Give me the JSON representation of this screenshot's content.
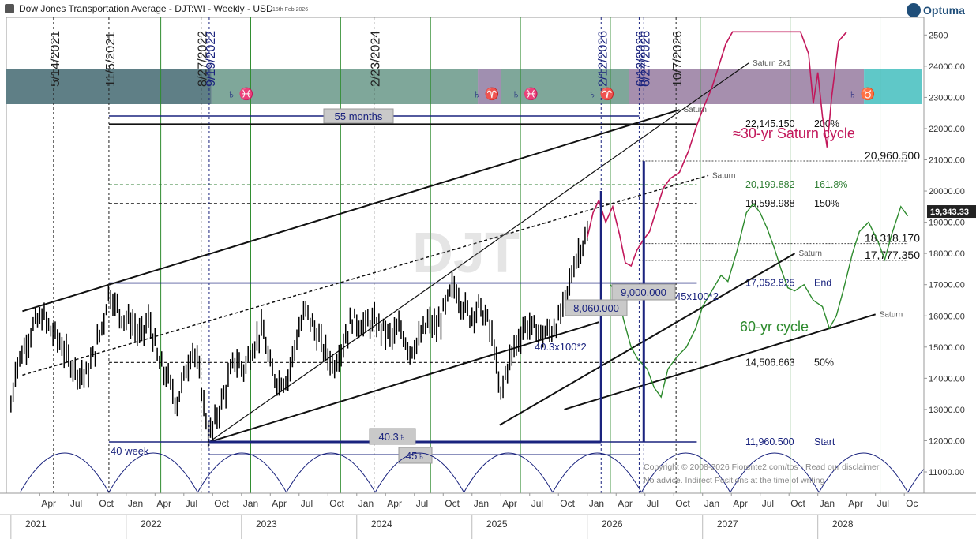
{
  "header": {
    "title": "Dow Jones Transportation Average - DJT:WI - Weekly - USD",
    "date": "15th Feb 2026",
    "brand": "Optuma"
  },
  "chart_data": {
    "type": "candlestick",
    "ylim": [
      10500,
      25100
    ],
    "y_ticks": [
      "11000.00",
      "12000.00",
      "13000.00",
      "14000.00",
      "15000.00",
      "16000.00",
      "17000.00",
      "18000.00",
      "19000.00",
      "20000.00",
      "21000.00",
      "22000.00",
      "23000.00",
      "24000.00",
      "2500"
    ],
    "last_price": "19,343.33",
    "watermark": "DJT",
    "month_labels": [
      {
        "t": 2021.25,
        "label": "Apr"
      },
      {
        "t": 2021.5,
        "label": "Jul"
      },
      {
        "t": 2021.75,
        "label": "Oct"
      },
      {
        "t": 2022.0,
        "label": "Jan"
      },
      {
        "t": 2022.25,
        "label": "Apr"
      },
      {
        "t": 2022.5,
        "label": "Jul"
      },
      {
        "t": 2022.75,
        "label": "Oct"
      },
      {
        "t": 2023.0,
        "label": "Jan"
      },
      {
        "t": 2023.25,
        "label": "Apr"
      },
      {
        "t": 2023.5,
        "label": "Jul"
      },
      {
        "t": 2023.75,
        "label": "Oct"
      },
      {
        "t": 2024.0,
        "label": "Jan"
      },
      {
        "t": 2024.25,
        "label": "Apr"
      },
      {
        "t": 2024.5,
        "label": "Jul"
      },
      {
        "t": 2024.75,
        "label": "Oct"
      },
      {
        "t": 2025.0,
        "label": "Jan"
      },
      {
        "t": 2025.25,
        "label": "Apr"
      },
      {
        "t": 2025.5,
        "label": "Jul"
      },
      {
        "t": 2025.75,
        "label": "Oct"
      },
      {
        "t": 2026.0,
        "label": "Jan"
      },
      {
        "t": 2026.25,
        "label": "Apr"
      },
      {
        "t": 2026.5,
        "label": "Jul"
      },
      {
        "t": 2026.75,
        "label": "Oct"
      },
      {
        "t": 2027.0,
        "label": "Jan"
      },
      {
        "t": 2027.25,
        "label": "Apr"
      },
      {
        "t": 2027.5,
        "label": "Jul"
      },
      {
        "t": 2027.75,
        "label": "Oct"
      },
      {
        "t": 2028.0,
        "label": "Jan"
      },
      {
        "t": 2028.25,
        "label": "Apr"
      },
      {
        "t": 2028.5,
        "label": "Jul"
      },
      {
        "t": 2028.75,
        "label": "Oc"
      }
    ],
    "year_labels": [
      {
        "t": 2021.25,
        "label": "2021"
      },
      {
        "t": 2022.25,
        "label": "2022"
      },
      {
        "t": 2023.25,
        "label": "2023"
      },
      {
        "t": 2024.25,
        "label": "2024"
      },
      {
        "t": 2025.25,
        "label": "2025"
      },
      {
        "t": 2026.25,
        "label": "2026"
      },
      {
        "t": 2027.25,
        "label": "2027"
      },
      {
        "t": 2028.25,
        "label": "2028"
      }
    ],
    "date_lines": [
      {
        "t": 2021.37,
        "label": "5/14/2021",
        "color": "#222"
      },
      {
        "t": 2021.85,
        "label": "11/5/2021",
        "color": "#222"
      },
      {
        "t": 2022.65,
        "label": "8/27/2022",
        "color": "#222"
      },
      {
        "t": 2022.72,
        "label": "9/19/2022",
        "color": "#1a237e"
      },
      {
        "t": 2024.15,
        "label": "2/23/2024",
        "color": "#222"
      },
      {
        "t": 2026.12,
        "label": "2/12/2026",
        "color": "#1a237e"
      },
      {
        "t": 2026.45,
        "label": "6/12/2026",
        "color": "#1a237e"
      },
      {
        "t": 2026.49,
        "label": "6/27/2026",
        "color": "#1a237e"
      },
      {
        "t": 2026.77,
        "label": "10/7/2026",
        "color": "#222"
      }
    ],
    "zodiac_marks": [
      {
        "t": 2022.99,
        "label": "♄ ♓"
      },
      {
        "t": 2025.12,
        "label": "♄ ♈"
      },
      {
        "t": 2025.46,
        "label": "♄ ♓"
      },
      {
        "t": 2026.12,
        "label": "♄ ♈"
      },
      {
        "t": 2028.38,
        "label": "♄ ♉"
      }
    ],
    "levels": [
      {
        "value": 22145.15,
        "label": "22,145.150",
        "pct": "200%",
        "style": "solid",
        "color": "#111"
      },
      {
        "value": 20199.882,
        "label": "20,199.882",
        "pct": "161.8%",
        "style": "dash",
        "color": "#2e7d32"
      },
      {
        "value": 19598.988,
        "label": "19,598.988",
        "pct": "150%",
        "style": "dash",
        "color": "#111"
      },
      {
        "value": 17052.825,
        "label": "17,052.825",
        "pct": "End",
        "style": "solid",
        "color": "#1a237e"
      },
      {
        "value": 14506.663,
        "label": "14,506.663",
        "pct": "50%",
        "style": "dash",
        "color": "#111"
      },
      {
        "value": 11960.5,
        "label": "11,960.500",
        "pct": "Start",
        "style": "solid",
        "color": "#1a237e"
      }
    ],
    "price_labels": [
      "20,960.500",
      "18,318.170",
      "17,777.350"
    ],
    "annotations": {
      "saturn_cycle": "≈30-yr Saturn cycle",
      "cycle_60": "60-yr cycle",
      "months": "55 months",
      "weeks": "40 week",
      "box_8060": "8,060.000",
      "box_9000": "9,000.000",
      "fan_4030": "40.3x100*2",
      "fan_45": "45x100*2",
      "tag_403": "40.3♄",
      "tag_45": "45♄",
      "saturn": "Saturn",
      "saturn_2x1": "Saturn 2x1",
      "copyright": "Copyright © 2008-2026 Fiorente2.com/tos - Read our disclaimer",
      "advice": "No advice. Indirect Positions at the time of writing"
    },
    "price_anchors": [
      [
        2021.0,
        13100
      ],
      [
        2021.04,
        14300
      ],
      [
        2021.12,
        15000
      ],
      [
        2021.2,
        15700
      ],
      [
        2021.28,
        16000
      ],
      [
        2021.35,
        15500
      ],
      [
        2021.42,
        15200
      ],
      [
        2021.5,
        14600
      ],
      [
        2021.58,
        14200
      ],
      [
        2021.66,
        14100
      ],
      [
        2021.74,
        15000
      ],
      [
        2021.8,
        15800
      ],
      [
        2021.85,
        16800
      ],
      [
        2021.9,
        16400
      ],
      [
        2021.96,
        16000
      ],
      [
        2022.05,
        15800
      ],
      [
        2022.12,
        15300
      ],
      [
        2022.2,
        15900
      ],
      [
        2022.28,
        14500
      ],
      [
        2022.36,
        14000
      ],
      [
        2022.44,
        13200
      ],
      [
        2022.52,
        14300
      ],
      [
        2022.58,
        15000
      ],
      [
        2022.64,
        14000
      ],
      [
        2022.68,
        13000
      ],
      [
        2022.72,
        12100
      ],
      [
        2022.78,
        12700
      ],
      [
        2022.86,
        13600
      ],
      [
        2022.94,
        14600
      ],
      [
        2023.02,
        14300
      ],
      [
        2023.1,
        15000
      ],
      [
        2023.18,
        15600
      ],
      [
        2023.26,
        14200
      ],
      [
        2023.32,
        13900
      ],
      [
        2023.4,
        14000
      ],
      [
        2023.48,
        15300
      ],
      [
        2023.56,
        16200
      ],
      [
        2023.64,
        15500
      ],
      [
        2023.72,
        14900
      ],
      [
        2023.8,
        14400
      ],
      [
        2023.88,
        15100
      ],
      [
        2023.96,
        15900
      ],
      [
        2024.06,
        15700
      ],
      [
        2024.14,
        15800
      ],
      [
        2024.22,
        15600
      ],
      [
        2024.3,
        15300
      ],
      [
        2024.38,
        15600
      ],
      [
        2024.46,
        14900
      ],
      [
        2024.54,
        15200
      ],
      [
        2024.62,
        15800
      ],
      [
        2024.7,
        15600
      ],
      [
        2024.78,
        16400
      ],
      [
        2024.84,
        17000
      ],
      [
        2024.9,
        16500
      ],
      [
        2024.98,
        16000
      ],
      [
        2025.06,
        16300
      ],
      [
        2025.14,
        15800
      ],
      [
        2025.2,
        14900
      ],
      [
        2025.24,
        13300
      ],
      [
        2025.3,
        14300
      ],
      [
        2025.38,
        15100
      ],
      [
        2025.46,
        15700
      ],
      [
        2025.54,
        15600
      ],
      [
        2025.6,
        15400
      ],
      [
        2025.68,
        15500
      ],
      [
        2025.76,
        15900
      ],
      [
        2025.82,
        16600
      ],
      [
        2025.88,
        17600
      ],
      [
        2025.94,
        18200
      ],
      [
        2025.99,
        18500
      ]
    ],
    "red_projection": [
      [
        2026.0,
        18500
      ],
      [
        2026.05,
        19300
      ],
      [
        2026.1,
        19700
      ],
      [
        2026.16,
        19000
      ],
      [
        2026.22,
        19500
      ],
      [
        2026.28,
        18600
      ],
      [
        2026.33,
        17700
      ],
      [
        2026.38,
        17600
      ],
      [
        2026.43,
        18100
      ],
      [
        2026.48,
        18400
      ],
      [
        2026.54,
        18700
      ],
      [
        2026.6,
        19400
      ],
      [
        2026.66,
        20100
      ],
      [
        2026.72,
        20400
      ],
      [
        2026.8,
        20600
      ],
      [
        2026.88,
        21300
      ],
      [
        2026.94,
        22000
      ],
      [
        2027.0,
        22600
      ],
      [
        2027.08,
        23300
      ],
      [
        2027.14,
        24000
      ],
      [
        2027.2,
        24700
      ],
      [
        2027.26,
        25100
      ],
      [
        2027.85,
        25100
      ],
      [
        2027.92,
        24400
      ],
      [
        2027.96,
        22800
      ],
      [
        2028.0,
        23800
      ],
      [
        2028.04,
        22400
      ],
      [
        2028.08,
        21400
      ],
      [
        2028.12,
        23000
      ],
      [
        2028.18,
        24800
      ],
      [
        2028.25,
        25100
      ]
    ],
    "green_projection": [
      [
        2026.2,
        17000
      ],
      [
        2026.26,
        16700
      ],
      [
        2026.32,
        15800
      ],
      [
        2026.38,
        15000
      ],
      [
        2026.44,
        14600
      ],
      [
        2026.52,
        14300
      ],
      [
        2026.58,
        13700
      ],
      [
        2026.64,
        13400
      ],
      [
        2026.7,
        14300
      ],
      [
        2026.78,
        14700
      ],
      [
        2026.86,
        15000
      ],
      [
        2026.94,
        15600
      ],
      [
        2027.0,
        16300
      ],
      [
        2027.08,
        16800
      ],
      [
        2027.16,
        17300
      ],
      [
        2027.22,
        17100
      ],
      [
        2027.3,
        18100
      ],
      [
        2027.38,
        19300
      ],
      [
        2027.44,
        19600
      ],
      [
        2027.5,
        19300
      ],
      [
        2027.56,
        18800
      ],
      [
        2027.62,
        18200
      ],
      [
        2027.68,
        17500
      ],
      [
        2027.74,
        16900
      ],
      [
        2027.8,
        16800
      ],
      [
        2027.88,
        17000
      ],
      [
        2027.96,
        16500
      ],
      [
        2028.04,
        16300
      ],
      [
        2028.1,
        15600
      ],
      [
        2028.16,
        16000
      ],
      [
        2028.22,
        16800
      ],
      [
        2028.3,
        18000
      ],
      [
        2028.36,
        18700
      ],
      [
        2028.44,
        19000
      ],
      [
        2028.52,
        18400
      ],
      [
        2028.58,
        17800
      ],
      [
        2028.64,
        18600
      ],
      [
        2028.72,
        19500
      ],
      [
        2028.78,
        19200
      ]
    ],
    "trendlines": [
      {
        "p1": [
          2021.1,
          16150
        ],
        "p2": [
          2026.8,
          22600
        ],
        "w": 2,
        "color": "#111",
        "dash": false,
        "label": "Saturn"
      },
      {
        "p1": [
          2022.72,
          11960
        ],
        "p2": [
          2027.4,
          24100
        ],
        "w": 1.2,
        "color": "#111",
        "dash": false,
        "label": "Saturn 2x1"
      },
      {
        "p1": [
          2021.1,
          14100
        ],
        "p2": [
          2027.05,
          20500
        ],
        "w": 1.5,
        "color": "#111",
        "dash": true,
        "label": "Saturn"
      },
      {
        "p1": [
          2022.72,
          11960
        ],
        "p2": [
          2026.1,
          15800
        ],
        "w": 2,
        "color": "#111",
        "dash": false,
        "label": ""
      },
      {
        "p1": [
          2025.24,
          12500
        ],
        "p2": [
          2027.8,
          18000
        ],
        "w": 2,
        "color": "#111",
        "dash": false,
        "label": "Saturn"
      },
      {
        "p1": [
          2025.8,
          13000
        ],
        "p2": [
          2028.5,
          16050
        ],
        "w": 2,
        "color": "#111",
        "dash": false,
        "label": "Saturn"
      }
    ],
    "band_segments": [
      {
        "from": 2020.96,
        "to": 2022.74,
        "color": "#5f7f86"
      },
      {
        "from": 2022.74,
        "to": 2025.05,
        "color": "#7fa79a"
      },
      {
        "from": 2025.05,
        "to": 2025.25,
        "color": "#a08fb0"
      },
      {
        "from": 2025.25,
        "to": 2026.36,
        "color": "#7fa79a"
      },
      {
        "from": 2026.36,
        "to": 2028.4,
        "color": "#a68fae"
      },
      {
        "from": 2028.4,
        "to": 2028.9,
        "color": "#5fc8c8"
      }
    ]
  }
}
